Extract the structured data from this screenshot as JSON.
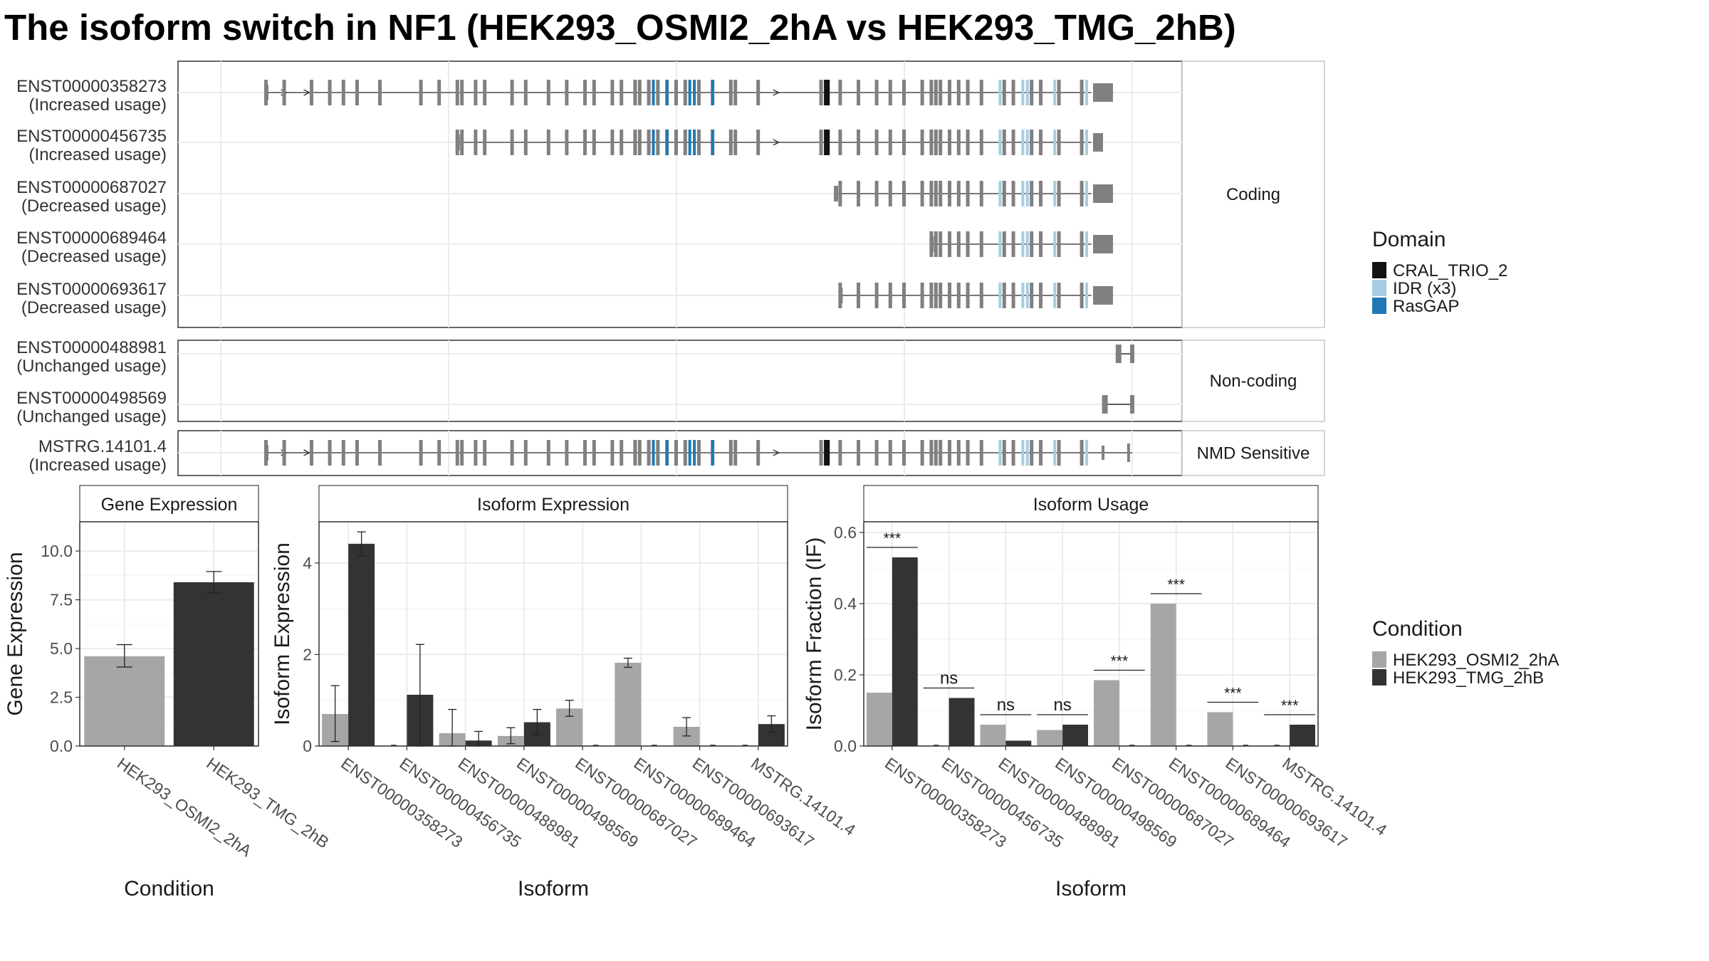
{
  "title": "The isoform switch in NF1 (HEK293_OSMI2_2hA vs HEK293_TMG_2hB)",
  "colors": {
    "cond_a": "#a6a6a6",
    "cond_b": "#333333",
    "exon": "#808080",
    "CRAL_TRIO_2": "#111111",
    "IDR (x3)": "#a6cee3",
    "RasGAP": "#1f78b4"
  },
  "legends": {
    "domain": {
      "title": "Domain",
      "items": [
        "CRAL_TRIO_2",
        "IDR (x3)",
        "RasGAP"
      ]
    },
    "condition": {
      "title": "Condition",
      "items": [
        "HEK293_OSMI2_2hA",
        "HEK293_TMG_2hB"
      ]
    }
  },
  "structure": {
    "groups": [
      {
        "label": "Coding",
        "tracks": [
          {
            "id": "ENST00000358273",
            "usage": "(Increased usage)",
            "span": [
              0.05,
              0.955
            ],
            "arrows": [
              0.07,
              0.095,
              0.61
            ]
          },
          {
            "id": "ENST00000456735",
            "usage": "(Increased usage)",
            "span": [
              0.26,
              0.955
            ],
            "arrows": [
              0.61
            ]
          },
          {
            "id": "ENST00000687027",
            "usage": "(Decreased usage)",
            "span": [
              0.675,
              0.955
            ],
            "arrows": []
          },
          {
            "id": "ENST00000689464",
            "usage": "(Decreased usage)",
            "span": [
              0.78,
              0.955
            ],
            "arrows": []
          },
          {
            "id": "ENST00000693617",
            "usage": "(Decreased usage)",
            "span": [
              0.68,
              0.955
            ],
            "arrows": []
          }
        ]
      },
      {
        "label": "Non-coding",
        "tracks": [
          {
            "id": "ENST00000488981",
            "usage": "(Unchanged usage)",
            "span": [
              0.985,
              1.0
            ],
            "arrows": []
          },
          {
            "id": "ENST00000498569",
            "usage": "(Unchanged usage)",
            "span": [
              0.97,
              1.0
            ],
            "arrows": []
          }
        ]
      },
      {
        "label": "NMD Sensitive",
        "tracks": [
          {
            "id": "MSTRG.14101.4",
            "usage": "(Increased usage)",
            "span": [
              0.05,
              1.0
            ],
            "arrows": [
              0.07,
              0.095,
              0.61
            ]
          }
        ]
      }
    ]
  },
  "chart_data": [
    {
      "type": "bar",
      "strip": "Gene Expression",
      "xlabel": "Condition",
      "ylabel": "Gene Expression",
      "categories": [
        "HEK293_OSMI2_2hA",
        "HEK293_TMG_2hB"
      ],
      "values": [
        4.6,
        8.4
      ],
      "errors": [
        [
          4.05,
          5.2
        ],
        [
          7.85,
          8.95
        ]
      ],
      "ylim": [
        0,
        11.5
      ],
      "yticks": [
        "0.0",
        "2.5",
        "5.0",
        "7.5",
        "10.0"
      ],
      "grid": true
    },
    {
      "type": "bar",
      "strip": "Isoform Expression",
      "xlabel": "Isoform",
      "ylabel": "Isoform Expression",
      "categories": [
        "ENST00000358273",
        "ENST00000456735",
        "ENST00000488981",
        "ENST00000498569",
        "ENST00000687027",
        "ENST00000689464",
        "ENST00000693617",
        "MSTRG.14101.4"
      ],
      "series": [
        {
          "name": "HEK293_OSMI2_2hA",
          "values": [
            0.7,
            0.0,
            0.28,
            0.22,
            0.82,
            1.82,
            0.42,
            0.0
          ],
          "errors": [
            [
              0.1,
              1.32
            ],
            null,
            [
              0.0,
              0.8
            ],
            [
              0.05,
              0.4
            ],
            [
              0.65,
              1.0
            ],
            [
              1.72,
              1.92
            ],
            [
              0.22,
              0.62
            ],
            null
          ]
        },
        {
          "name": "HEK293_TMG_2hB",
          "values": [
            4.42,
            1.12,
            0.12,
            0.52,
            0.0,
            0.0,
            0.0,
            0.48
          ],
          "errors": [
            [
              4.15,
              4.68
            ],
            [
              0.0,
              2.22
            ],
            [
              0.0,
              0.32
            ],
            [
              0.25,
              0.8
            ],
            null,
            null,
            null,
            [
              0.3,
              0.66
            ]
          ]
        }
      ],
      "ylim": [
        0,
        4.9
      ],
      "yticks": [
        "0",
        "2",
        "4"
      ],
      "grid": true
    },
    {
      "type": "bar",
      "strip": "Isoform Usage",
      "xlabel": "Isoform",
      "ylabel": "Isoform Fraction (IF)",
      "categories": [
        "ENST00000358273",
        "ENST00000456735",
        "ENST00000488981",
        "ENST00000498569",
        "ENST00000687027",
        "ENST00000689464",
        "ENST00000693617",
        "MSTRG.14101.4"
      ],
      "series": [
        {
          "name": "HEK293_OSMI2_2hA",
          "values": [
            0.15,
            0.0,
            0.06,
            0.045,
            0.185,
            0.4,
            0.095,
            0.0
          ]
        },
        {
          "name": "HEK293_TMG_2hB",
          "values": [
            0.53,
            0.135,
            0.015,
            0.06,
            0.0,
            0.0,
            0.0,
            0.06
          ]
        }
      ],
      "significance": [
        "***",
        "ns",
        "ns",
        "ns",
        "***",
        "***",
        "***",
        "***"
      ],
      "ylim": [
        0,
        0.63
      ],
      "yticks": [
        "0.0",
        "0.2",
        "0.4",
        "0.6"
      ],
      "grid": true
    }
  ]
}
